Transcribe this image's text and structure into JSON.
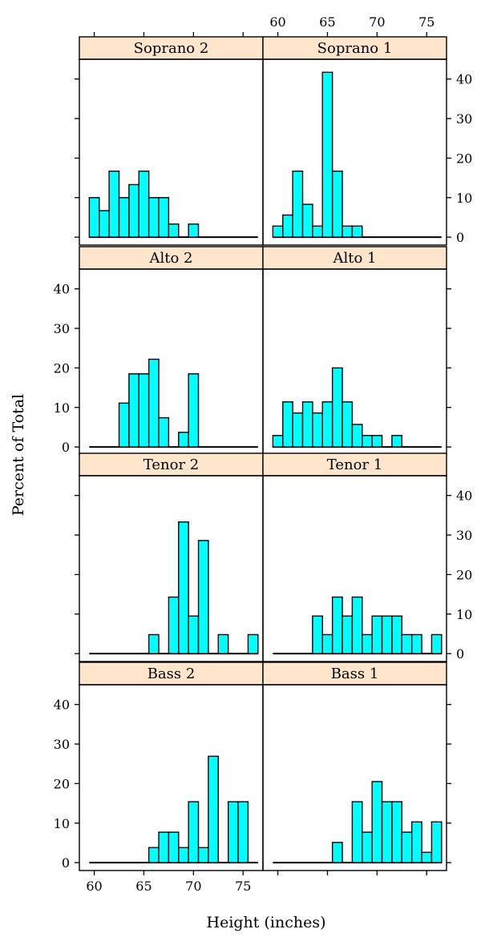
{
  "chart_data": {
    "type": "bar",
    "subtype": "trellis-histogram",
    "xlabel": "Height (inches)",
    "ylabel": "Percent of Total",
    "xlim": [
      58.5,
      77
    ],
    "ylim": [
      -2,
      45
    ],
    "x_ticks": [
      60,
      65,
      70,
      75
    ],
    "y_ticks": [
      0,
      10,
      20,
      30,
      40
    ],
    "bin_width": 1,
    "colors": {
      "bar": "#00ffff",
      "strip": "#ffe5cc",
      "border": "#000000"
    },
    "panels": [
      {
        "name": "Soprano 2",
        "row": 0,
        "col": 0,
        "bin_start": 59.5,
        "values": [
          10,
          6.7,
          16.7,
          10,
          13.3,
          16.7,
          10,
          10,
          3.3,
          0,
          3.3
        ]
      },
      {
        "name": "Soprano 1",
        "row": 0,
        "col": 1,
        "bin_start": 59.5,
        "values": [
          2.8,
          5.6,
          16.7,
          8.3,
          2.8,
          41.7,
          16.7,
          2.8,
          2.8
        ]
      },
      {
        "name": "Alto 2",
        "row": 1,
        "col": 0,
        "bin_start": 62.5,
        "values": [
          11.1,
          18.5,
          18.5,
          22.2,
          7.4,
          0,
          3.7,
          18.5
        ]
      },
      {
        "name": "Alto 1",
        "row": 1,
        "col": 1,
        "bin_start": 59.5,
        "values": [
          2.9,
          11.4,
          8.6,
          11.4,
          8.6,
          11.4,
          20,
          11.4,
          5.7,
          2.9,
          2.9,
          0,
          2.9
        ]
      },
      {
        "name": "Tenor 2",
        "row": 2,
        "col": 0,
        "bin_start": 65.5,
        "values": [
          4.8,
          0,
          14.3,
          33.3,
          9.5,
          28.6,
          0,
          4.8,
          0,
          0,
          4.8
        ]
      },
      {
        "name": "Tenor 1",
        "row": 2,
        "col": 1,
        "bin_start": 63.5,
        "values": [
          9.5,
          4.8,
          14.3,
          9.5,
          14.3,
          4.8,
          9.5,
          9.5,
          9.5,
          4.8,
          4.8,
          0,
          4.8
        ]
      },
      {
        "name": "Bass 2",
        "row": 3,
        "col": 0,
        "bin_start": 65.5,
        "values": [
          3.8,
          7.7,
          7.7,
          3.8,
          15.4,
          3.8,
          26.9,
          0,
          15.4,
          15.4
        ]
      },
      {
        "name": "Bass 1",
        "row": 3,
        "col": 1,
        "bin_start": 65.5,
        "values": [
          5.1,
          0,
          15.4,
          7.7,
          20.5,
          15.4,
          15.4,
          7.7,
          10.3,
          2.6,
          10.3
        ]
      }
    ]
  }
}
